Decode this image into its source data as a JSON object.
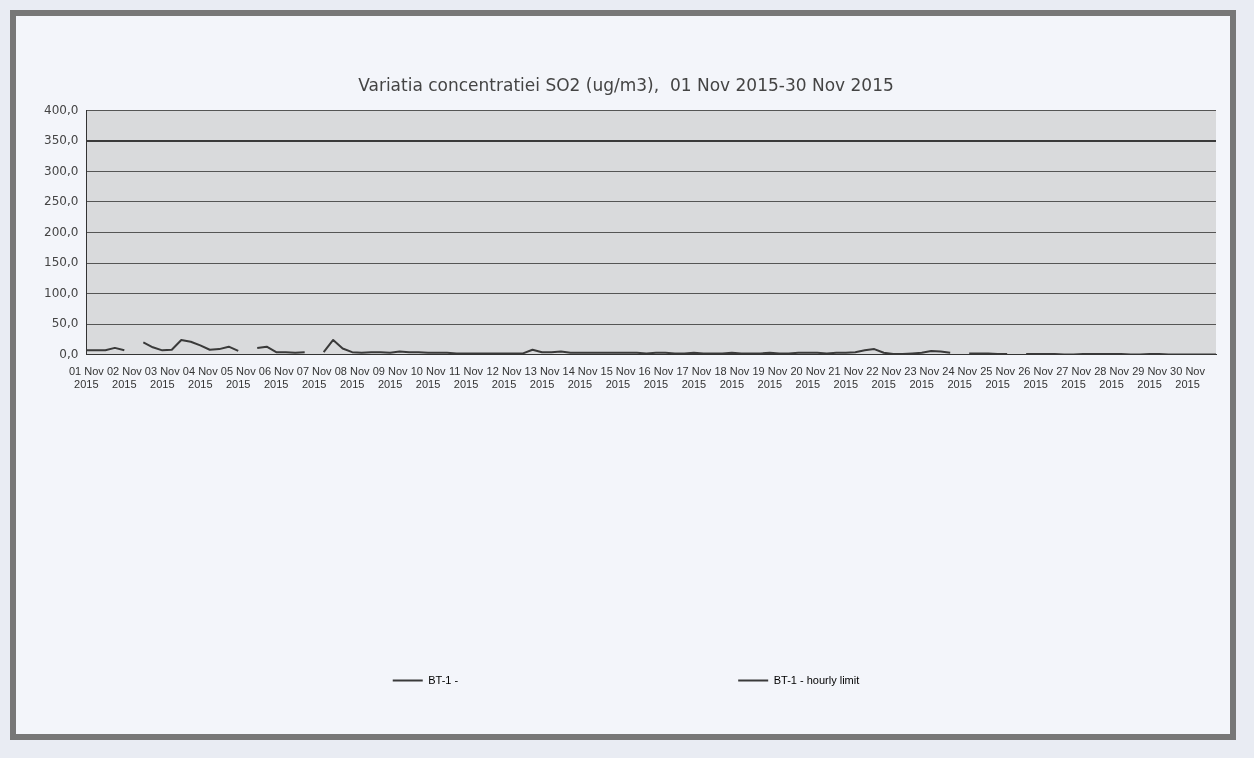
{
  "chart_data": {
    "type": "line",
    "title": "Variatia concentratiei SO2 (ug/m3),  01 Nov 2015-30 Nov 2015",
    "categories": [
      "01 Nov 2015",
      null,
      null,
      null,
      "02 Nov 2015",
      null,
      null,
      null,
      "03 Nov 2015",
      null,
      null,
      null,
      "04 Nov 2015",
      null,
      null,
      null,
      "05 Nov 2015",
      null,
      null,
      null,
      "06 Nov 2015",
      null,
      null,
      null,
      "07 Nov 2015",
      null,
      null,
      null,
      "08 Nov 2015",
      null,
      null,
      null,
      "09 Nov 2015",
      null,
      null,
      null,
      "10 Nov 2015",
      null,
      null,
      null,
      "11 Nov 2015",
      null,
      null,
      null,
      "12 Nov 2015",
      null,
      null,
      null,
      "13 Nov 2015",
      null,
      null,
      null,
      "14 Nov 2015",
      null,
      null,
      null,
      "15 Nov 2015",
      null,
      null,
      null,
      "16 Nov 2015",
      null,
      null,
      null,
      "17 Nov 2015",
      null,
      null,
      null,
      "18 Nov 2015",
      null,
      null,
      null,
      "19 Nov 2015",
      null,
      null,
      null,
      "20 Nov 2015",
      null,
      null,
      null,
      "21 Nov 2015",
      null,
      null,
      null,
      "22 Nov 2015",
      null,
      null,
      null,
      "23 Nov 2015",
      null,
      null,
      null,
      "24 Nov 2015",
      null,
      null,
      null,
      "25 Nov 2015",
      null,
      null,
      null,
      "26 Nov 2015",
      null,
      null,
      null,
      "27 Nov 2015",
      null,
      null,
      null,
      "28 Nov 2015",
      null,
      null,
      null,
      "29 Nov 2015",
      null,
      null,
      null,
      "30 Nov 2015",
      null,
      null,
      null
    ],
    "series": [
      {
        "name": "BT-1 -",
        "color": "#3a3a3a",
        "values": [
          7,
          7,
          7,
          11,
          7,
          null,
          20,
          12,
          7,
          8,
          24,
          21,
          15,
          8,
          9,
          13,
          6,
          null,
          11,
          13,
          4,
          4,
          3,
          4,
          null,
          4,
          24,
          10,
          4,
          3,
          4,
          4,
          3,
          5,
          4,
          4,
          3,
          3,
          3,
          2,
          2,
          2,
          2,
          2,
          2,
          2,
          2,
          8,
          4,
          4,
          5,
          3,
          3,
          3,
          3,
          3,
          3,
          3,
          3,
          2,
          3,
          3,
          2,
          2,
          3,
          2,
          2,
          2,
          3,
          2,
          2,
          2,
          3,
          2,
          2,
          3,
          3,
          3,
          2,
          3,
          3,
          4,
          7,
          9,
          3,
          1,
          1,
          2,
          3,
          6,
          5,
          3,
          null,
          2,
          2,
          2,
          1,
          1,
          null,
          1,
          1,
          1,
          1,
          0,
          0,
          1,
          1,
          1,
          1,
          1,
          0,
          0,
          1,
          1,
          0,
          0,
          0,
          0,
          0,
          0
        ]
      },
      {
        "name": "BT-1 - hourly limit",
        "color": "#3a3a3a",
        "values": [
          350,
          350,
          350,
          350,
          350,
          350,
          350,
          350,
          350,
          350,
          350,
          350,
          350,
          350,
          350,
          350,
          350,
          350,
          350,
          350,
          350,
          350,
          350,
          350,
          350,
          350,
          350,
          350,
          350,
          350,
          350,
          350,
          350,
          350,
          350,
          350,
          350,
          350,
          350,
          350,
          350,
          350,
          350,
          350,
          350,
          350,
          350,
          350,
          350,
          350,
          350,
          350,
          350,
          350,
          350,
          350,
          350,
          350,
          350,
          350,
          350,
          350,
          350,
          350,
          350,
          350,
          350,
          350,
          350,
          350,
          350,
          350,
          350,
          350,
          350,
          350,
          350,
          350,
          350,
          350,
          350,
          350,
          350,
          350,
          350,
          350,
          350,
          350,
          350,
          350,
          350,
          350,
          350,
          350,
          350,
          350,
          350,
          350,
          350,
          350,
          350,
          350,
          350,
          350,
          350,
          350,
          350,
          350,
          350,
          350,
          350,
          350,
          350,
          350,
          350,
          350,
          350,
          350,
          350,
          350
        ]
      }
    ],
    "ylim": [
      0,
      400
    ],
    "yticks": [
      {
        "value": 0,
        "label": "0,0"
      },
      {
        "value": 50,
        "label": "50,0"
      },
      {
        "value": 100,
        "label": "100,0"
      },
      {
        "value": 150,
        "label": "150,0"
      },
      {
        "value": 200,
        "label": "200,0"
      },
      {
        "value": 250,
        "label": "250,0"
      },
      {
        "value": 300,
        "label": "300,0"
      },
      {
        "value": 350,
        "label": "350,0"
      },
      {
        "value": 400,
        "label": "400,0"
      }
    ],
    "grid": "y",
    "legend": "bottom",
    "marker": "none",
    "line_style": "solid"
  }
}
